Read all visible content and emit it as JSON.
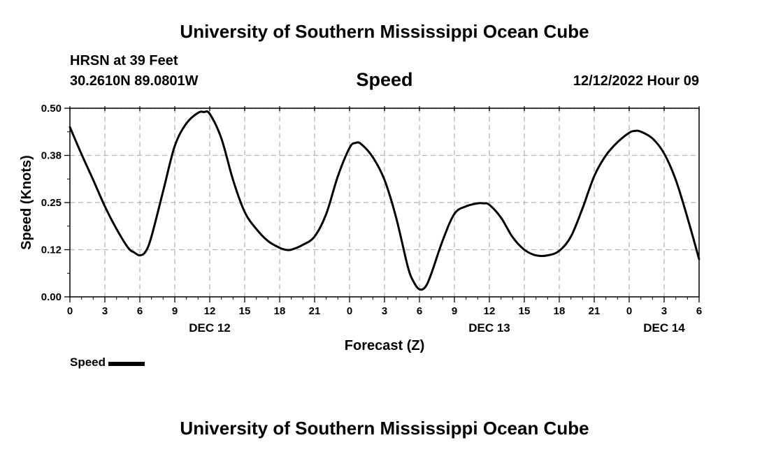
{
  "header": {
    "title": "University of Southern Mississippi Ocean Cube",
    "station": "HRSN at 39 Feet",
    "coordinates": "30.2610N  89.0801W",
    "timestamp": "12/12/2022 Hour 09"
  },
  "footer": {
    "title": "University of Southern Mississippi Ocean Cube"
  },
  "legend": {
    "label": "Speed",
    "color": "#000000"
  },
  "chart_data": {
    "type": "line",
    "title": "Speed",
    "xlabel": "Forecast (Z)",
    "ylabel": "Speed (Knots)",
    "ylim": [
      0,
      0.5
    ],
    "xlim": [
      0,
      54
    ],
    "grid": true,
    "legend_position": "bottom-left",
    "y_ticks": [
      {
        "value": 0,
        "label": "0.00"
      },
      {
        "value": 0.125,
        "label": "0.12"
      },
      {
        "value": 0.25,
        "label": "0.25"
      },
      {
        "value": 0.375,
        "label": "0.38"
      },
      {
        "value": 0.5,
        "label": "0.50"
      }
    ],
    "x_ticks": [
      {
        "value": 0,
        "label": "0"
      },
      {
        "value": 3,
        "label": "3"
      },
      {
        "value": 6,
        "label": "6"
      },
      {
        "value": 9,
        "label": "9"
      },
      {
        "value": 12,
        "label": "12"
      },
      {
        "value": 15,
        "label": "15"
      },
      {
        "value": 18,
        "label": "18"
      },
      {
        "value": 21,
        "label": "21"
      },
      {
        "value": 24,
        "label": "0"
      },
      {
        "value": 27,
        "label": "3"
      },
      {
        "value": 30,
        "label": "6"
      },
      {
        "value": 33,
        "label": "9"
      },
      {
        "value": 36,
        "label": "12"
      },
      {
        "value": 39,
        "label": "15"
      },
      {
        "value": 42,
        "label": "18"
      },
      {
        "value": 45,
        "label": "21"
      },
      {
        "value": 48,
        "label": "0"
      },
      {
        "value": 51,
        "label": "3"
      },
      {
        "value": 54,
        "label": "6"
      }
    ],
    "day_labels": [
      {
        "value": 12,
        "label": "DEC 12"
      },
      {
        "value": 36,
        "label": "DEC 13"
      },
      {
        "value": 51,
        "label": "DEC 14"
      }
    ],
    "series": [
      {
        "name": "Speed",
        "color": "#000000",
        "x": [
          0,
          1,
          2,
          3,
          4,
          5,
          5.5,
          6,
          6.5,
          7,
          8,
          9,
          10,
          11,
          11.5,
          12,
          13,
          14,
          15,
          16,
          17,
          18,
          18.5,
          19,
          20,
          21,
          22,
          23,
          24,
          24.5,
          25,
          26,
          27,
          28,
          29,
          29.5,
          30,
          30.5,
          31,
          32,
          33,
          34,
          35,
          35.5,
          36,
          37,
          38,
          39,
          40,
          41,
          42,
          43,
          44,
          45,
          46,
          47,
          48,
          48.5,
          49,
          50,
          51,
          52,
          53,
          54
        ],
        "y": [
          0.45,
          0.378,
          0.31,
          0.24,
          0.18,
          0.13,
          0.118,
          0.11,
          0.12,
          0.16,
          0.28,
          0.4,
          0.46,
          0.488,
          0.49,
          0.485,
          0.42,
          0.31,
          0.225,
          0.18,
          0.148,
          0.13,
          0.125,
          0.125,
          0.138,
          0.16,
          0.22,
          0.32,
          0.395,
          0.408,
          0.405,
          0.37,
          0.31,
          0.21,
          0.08,
          0.04,
          0.02,
          0.026,
          0.06,
          0.15,
          0.22,
          0.24,
          0.248,
          0.248,
          0.244,
          0.21,
          0.158,
          0.125,
          0.11,
          0.11,
          0.122,
          0.16,
          0.235,
          0.32,
          0.375,
          0.41,
          0.435,
          0.44,
          0.438,
          0.42,
          0.38,
          0.31,
          0.21,
          0.1
        ]
      }
    ]
  }
}
